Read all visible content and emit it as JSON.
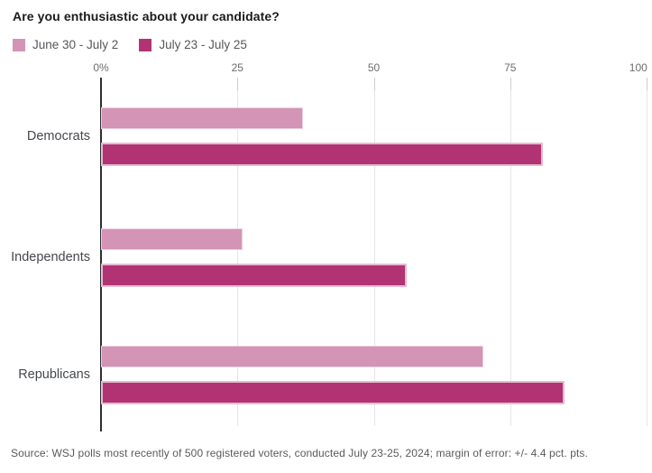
{
  "title": "Are you enthusiastic about your candidate?",
  "legend": [
    {
      "label": "June 30 - July 2",
      "color": "#d394b6"
    },
    {
      "label": "July 23 - July 25",
      "color": "#b23374"
    }
  ],
  "source": "Source: WSJ polls most recently of 500 registered voters, conducted July 23-25, 2024; margin of error: +/- 4.4 pct. pts.",
  "colors": {
    "series_1": "#d394b6",
    "series_2": "#b23374",
    "axis": "#2f2f31",
    "gridline": "#e6e6e8",
    "title_text": "#1b1b1f",
    "tick_text": "#6d6d6f"
  },
  "chart_data": {
    "type": "bar",
    "orientation": "horizontal",
    "title": "Are you enthusiastic about your candidate?",
    "categories": [
      "Democrats",
      "Independents",
      "Republicans"
    ],
    "series": [
      {
        "name": "June 30 - July 2",
        "color": "#d394b6",
        "values": [
          37,
          26,
          70
        ]
      },
      {
        "name": "July 23 - July 25",
        "color": "#b23374",
        "values": [
          81,
          56,
          85
        ]
      }
    ],
    "xlabel": "",
    "ylabel": "",
    "xlim": [
      0,
      100
    ],
    "x_ticks": [
      "0%",
      "25",
      "50",
      "75",
      "100"
    ],
    "x_tick_values": [
      0,
      25,
      50,
      75,
      100
    ],
    "grid": true,
    "legend_position": "top-left",
    "unit": "percent"
  }
}
